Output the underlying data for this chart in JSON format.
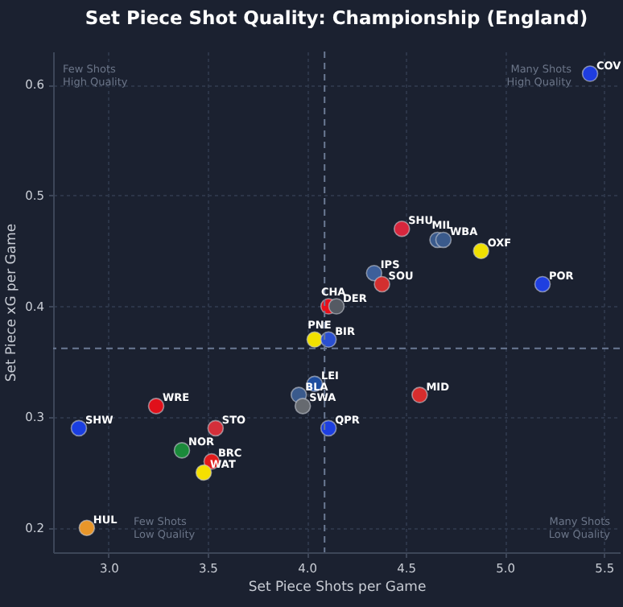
{
  "chart_data": {
    "type": "scatter",
    "title": "Set Piece Shot Quality: Championship (England)",
    "xlabel": "Set Piece Shots per Game",
    "ylabel": "Set Piece xG per Game",
    "xlim": [
      2.72,
      5.58
    ],
    "ylim": [
      0.178,
      0.63
    ],
    "xticks": [
      {
        "value": 3,
        "label": "3.0"
      },
      3.5,
      {
        "value": 4,
        "label": "4.0"
      },
      4.5,
      {
        "value": 5,
        "label": "5.0"
      },
      5.5
    ],
    "yticks": [
      0.2,
      0.3,
      0.4,
      0.5,
      0.6
    ],
    "grid": true,
    "legend": false,
    "marker": "circle",
    "ref_lines": [
      {
        "axis": "x",
        "value": 4.09,
        "color": "#6b7a94",
        "line_style": "dashed"
      },
      {
        "axis": "y",
        "value": 0.362,
        "color": "#6b7a94",
        "line_style": "dashed"
      }
    ],
    "annotations": [
      "Few Shots\nHigh Quality",
      "Many Shots\nHigh Quality",
      "Few Shots\nLow Quality",
      "Many Shots\nLow Quality"
    ],
    "series": [
      {
        "name": "COV",
        "color": "#1f3de0",
        "x": [
          5.43
        ],
        "values": [
          0.61
        ]
      },
      {
        "name": "SHU",
        "color": "#d7263d",
        "x": [
          4.48
        ],
        "values": [
          0.47
        ]
      },
      {
        "name": "MIL",
        "color": "#3a5a8c",
        "x": [
          4.66
        ],
        "values": [
          0.46
        ]
      },
      {
        "name": "WBA",
        "color": "#3a5a8c",
        "x": [
          4.69
        ],
        "values": [
          0.46
        ]
      },
      {
        "name": "OXF",
        "color": "#f0e000",
        "x": [
          4.88
        ],
        "values": [
          0.45
        ]
      },
      {
        "name": "IPS",
        "color": "#3d5f9a",
        "x": [
          4.34
        ],
        "values": [
          0.43
        ]
      },
      {
        "name": "SOU",
        "color": "#d32f2f",
        "x": [
          4.38
        ],
        "values": [
          0.42
        ]
      },
      {
        "name": "POR",
        "color": "#1f3fe0",
        "x": [
          5.19
        ],
        "values": [
          0.42
        ]
      },
      {
        "name": "CHA",
        "color": "#e8111b",
        "x": [
          4.11
        ],
        "values": [
          0.4
        ]
      },
      {
        "name": "DER",
        "color": "#555a63",
        "x": [
          4.15
        ],
        "values": [
          0.4
        ]
      },
      {
        "name": "PNE",
        "color": "#f0e000",
        "x": [
          4.04
        ],
        "values": [
          0.37
        ]
      },
      {
        "name": "BIR",
        "color": "#2a4fd0",
        "x": [
          4.11
        ],
        "values": [
          0.37
        ]
      },
      {
        "name": "LEI",
        "color": "#1e4d9e",
        "x": [
          4.04
        ],
        "values": [
          0.33
        ]
      },
      {
        "name": "BLA",
        "color": "#3a5a8c",
        "x": [
          3.96
        ],
        "values": [
          0.32
        ]
      },
      {
        "name": "SWA",
        "color": "#666a70",
        "x": [
          3.98
        ],
        "values": [
          0.31
        ]
      },
      {
        "name": "QPR",
        "color": "#1d3fe0",
        "x": [
          4.11
        ],
        "values": [
          0.29
        ]
      },
      {
        "name": "MID",
        "color": "#d62d2d",
        "x": [
          4.57
        ],
        "values": [
          0.32
        ]
      },
      {
        "name": "WRE",
        "color": "#e0101a",
        "x": [
          3.24
        ],
        "values": [
          0.31
        ]
      },
      {
        "name": "SHW",
        "color": "#1a3ee0",
        "x": [
          2.85
        ],
        "values": [
          0.29
        ]
      },
      {
        "name": "STO",
        "color": "#d32f3a",
        "x": [
          3.54
        ],
        "values": [
          0.29
        ]
      },
      {
        "name": "NOR",
        "color": "#1a8a3a",
        "x": [
          3.37
        ],
        "values": [
          0.27
        ]
      },
      {
        "name": "BRC",
        "color": "#e21b1b",
        "x": [
          3.52
        ],
        "values": [
          0.26
        ]
      },
      {
        "name": "WAT",
        "color": "#f5e000",
        "x": [
          3.48
        ],
        "values": [
          0.25
        ]
      },
      {
        "name": "HUL",
        "color": "#e8962a",
        "x": [
          2.89
        ],
        "values": [
          0.2
        ]
      }
    ]
  }
}
